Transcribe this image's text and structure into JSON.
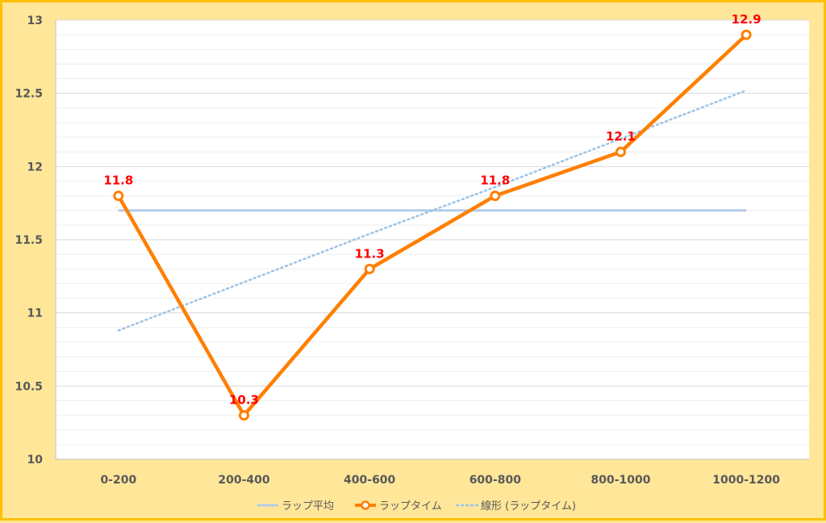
{
  "chart_data": {
    "type": "line",
    "categories": [
      "0-200",
      "200-400",
      "400-600",
      "600-800",
      "800-1000",
      "1000-1200"
    ],
    "ylim": [
      10,
      13
    ],
    "y_ticks": [
      "10",
      "10.5",
      "11",
      "11.5",
      "12",
      "12.5",
      "13"
    ],
    "grid": true,
    "legend_position": "bottom",
    "series": [
      {
        "name": "ラップ平均",
        "kind": "flat",
        "values": [
          11.7,
          11.7,
          11.7,
          11.7,
          11.7,
          11.7
        ],
        "color": "#b4cde6"
      },
      {
        "name": "ラップタイム",
        "kind": "main",
        "values": [
          11.8,
          10.3,
          11.3,
          11.8,
          12.1,
          12.9
        ],
        "color": "#ff7f00"
      },
      {
        "name": "線形 (ラップタイム)",
        "kind": "trend",
        "values": [
          10.88,
          11.21,
          11.54,
          11.86,
          12.19,
          12.52
        ],
        "color": "#9dc3e6"
      }
    ],
    "data_labels": [
      "11.8",
      "10.3",
      "11.3",
      "11.8",
      "12.1",
      "12.9"
    ],
    "data_label_color": "#ff0000"
  }
}
